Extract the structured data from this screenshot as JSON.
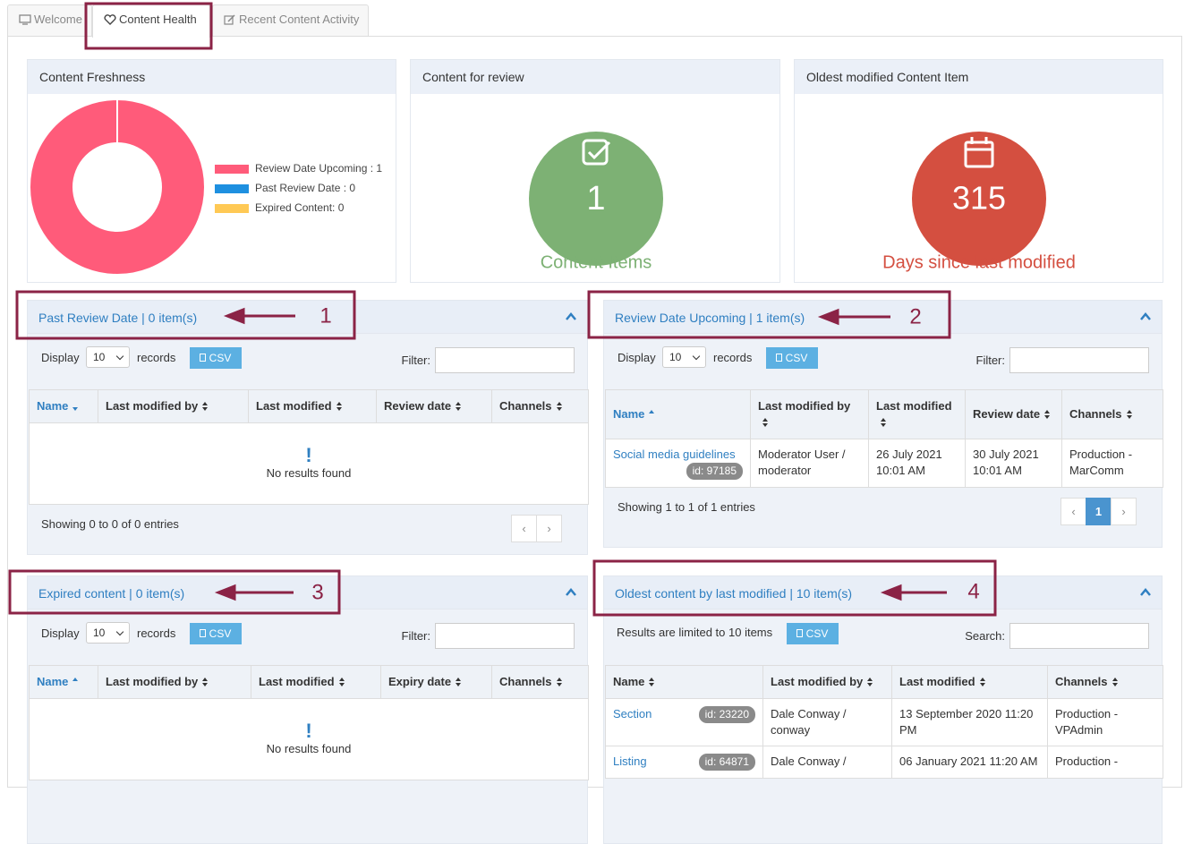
{
  "tabs": [
    "Welcome",
    "Content Health",
    "Recent Content Activity"
  ],
  "cards": {
    "freshness": {
      "title": "Content Freshness",
      "type": "pie",
      "categories": [
        "Review Date Upcoming : 1",
        "Past Review Date : 0",
        "Expired Content: 0"
      ],
      "values": [
        1,
        0,
        0
      ],
      "colors": [
        "#ff5b7a",
        "#1e90e0",
        "#ffc955"
      ]
    },
    "review": {
      "title": "Content for review",
      "value": 1,
      "caption": "Content Items",
      "color": "#7db174"
    },
    "oldest": {
      "title": "Oldest modified Content Item",
      "value": 315,
      "caption": "Days since last modified",
      "color": "#d44f40"
    }
  },
  "panels": [
    {
      "title": "Past Review Date | 0 item(s)",
      "annotation": 1,
      "controls": {
        "display": "Display",
        "page_size": 10,
        "records": "records",
        "csv": "CSV",
        "filter": "Filter:"
      },
      "columns": [
        "Name",
        "Last modified by",
        "Last modified",
        "Review date",
        "Channels"
      ],
      "rows": [],
      "empty": "No results found",
      "info": "Showing 0 to 0 of 0 entries",
      "pages": []
    },
    {
      "title": "Review Date Upcoming | 1 item(s)",
      "annotation": 2,
      "controls": {
        "display": "Display",
        "page_size": 10,
        "records": "records",
        "csv": "CSV",
        "filter": "Filter:"
      },
      "columns": [
        "Name",
        "Last modified by",
        "Last modified",
        "Review date",
        "Channels"
      ],
      "rows": [
        {
          "name": "Social media guidelines",
          "id": "id: 97185",
          "cells": [
            "Moderator User / moderator",
            "26 July 2021 10:01 AM",
            "30 July 2021 10:01 AM",
            "Production - MarComm"
          ]
        }
      ],
      "info": "Showing 1 to 1 of 1 entries",
      "pages": [
        1
      ]
    },
    {
      "title": "Expired content | 0 item(s)",
      "annotation": 3,
      "controls": {
        "display": "Display",
        "page_size": 10,
        "records": "records",
        "csv": "CSV",
        "filter": "Filter:"
      },
      "columns": [
        "Name",
        "Last modified by",
        "Last modified",
        "Expiry date",
        "Channels"
      ],
      "rows": [],
      "empty": "No results found"
    },
    {
      "title": "Oldest content by last modified | 10 item(s)",
      "annotation": 4,
      "controls": {
        "note": "Results are limited to 10 items",
        "csv": "CSV",
        "filter": "Search:"
      },
      "columns": [
        "Name",
        "Last modified by",
        "Last modified",
        "Channels"
      ],
      "rows": [
        {
          "name": "Section",
          "id": "id: 23220",
          "cells": [
            "Dale Conway / conway",
            "13 September 2020 11:20 PM",
            "Production - VPAdmin"
          ]
        },
        {
          "name": "Listing",
          "id": "id: 64871",
          "cells": [
            "Dale Conway /",
            "06 January 2021 11:20 AM",
            "Production -"
          ]
        }
      ]
    }
  ]
}
